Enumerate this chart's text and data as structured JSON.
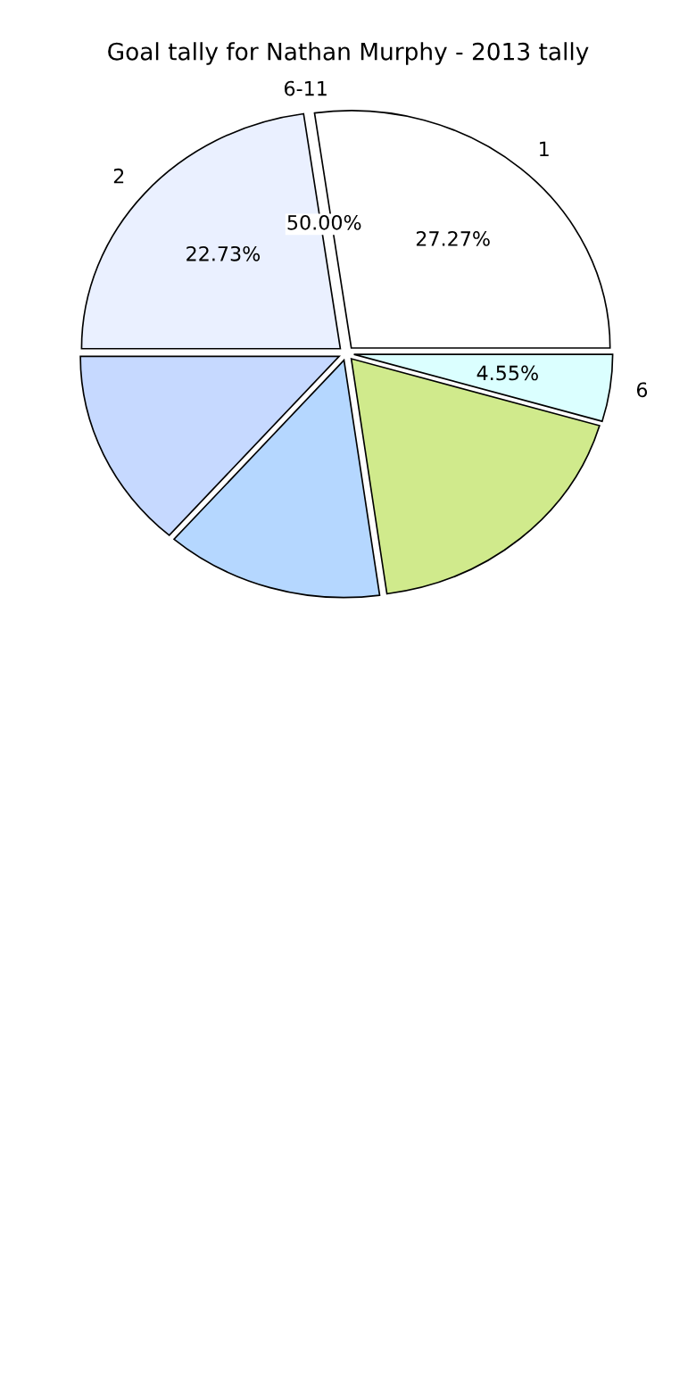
{
  "chart_data": {
    "type": "pie",
    "title": "Goal tally for Nathan Murphy - 2013 tally",
    "categories": [
      "2",
      "1",
      "6",
      null,
      null,
      null
    ],
    "values": [
      22.73,
      27.27,
      4.55,
      18.25,
      13.6,
      13.6
    ],
    "colors": [
      "#eaf0ff",
      "#ffffff",
      "#dbffff",
      "#d0ea8c",
      "#b5d7ff",
      "#c6d9ff"
    ],
    "value_labels": [
      "22.73%",
      "27.27%",
      "4.55%",
      null,
      null,
      null
    ],
    "annotations": [
      "6-11",
      "50.00%"
    ]
  }
}
